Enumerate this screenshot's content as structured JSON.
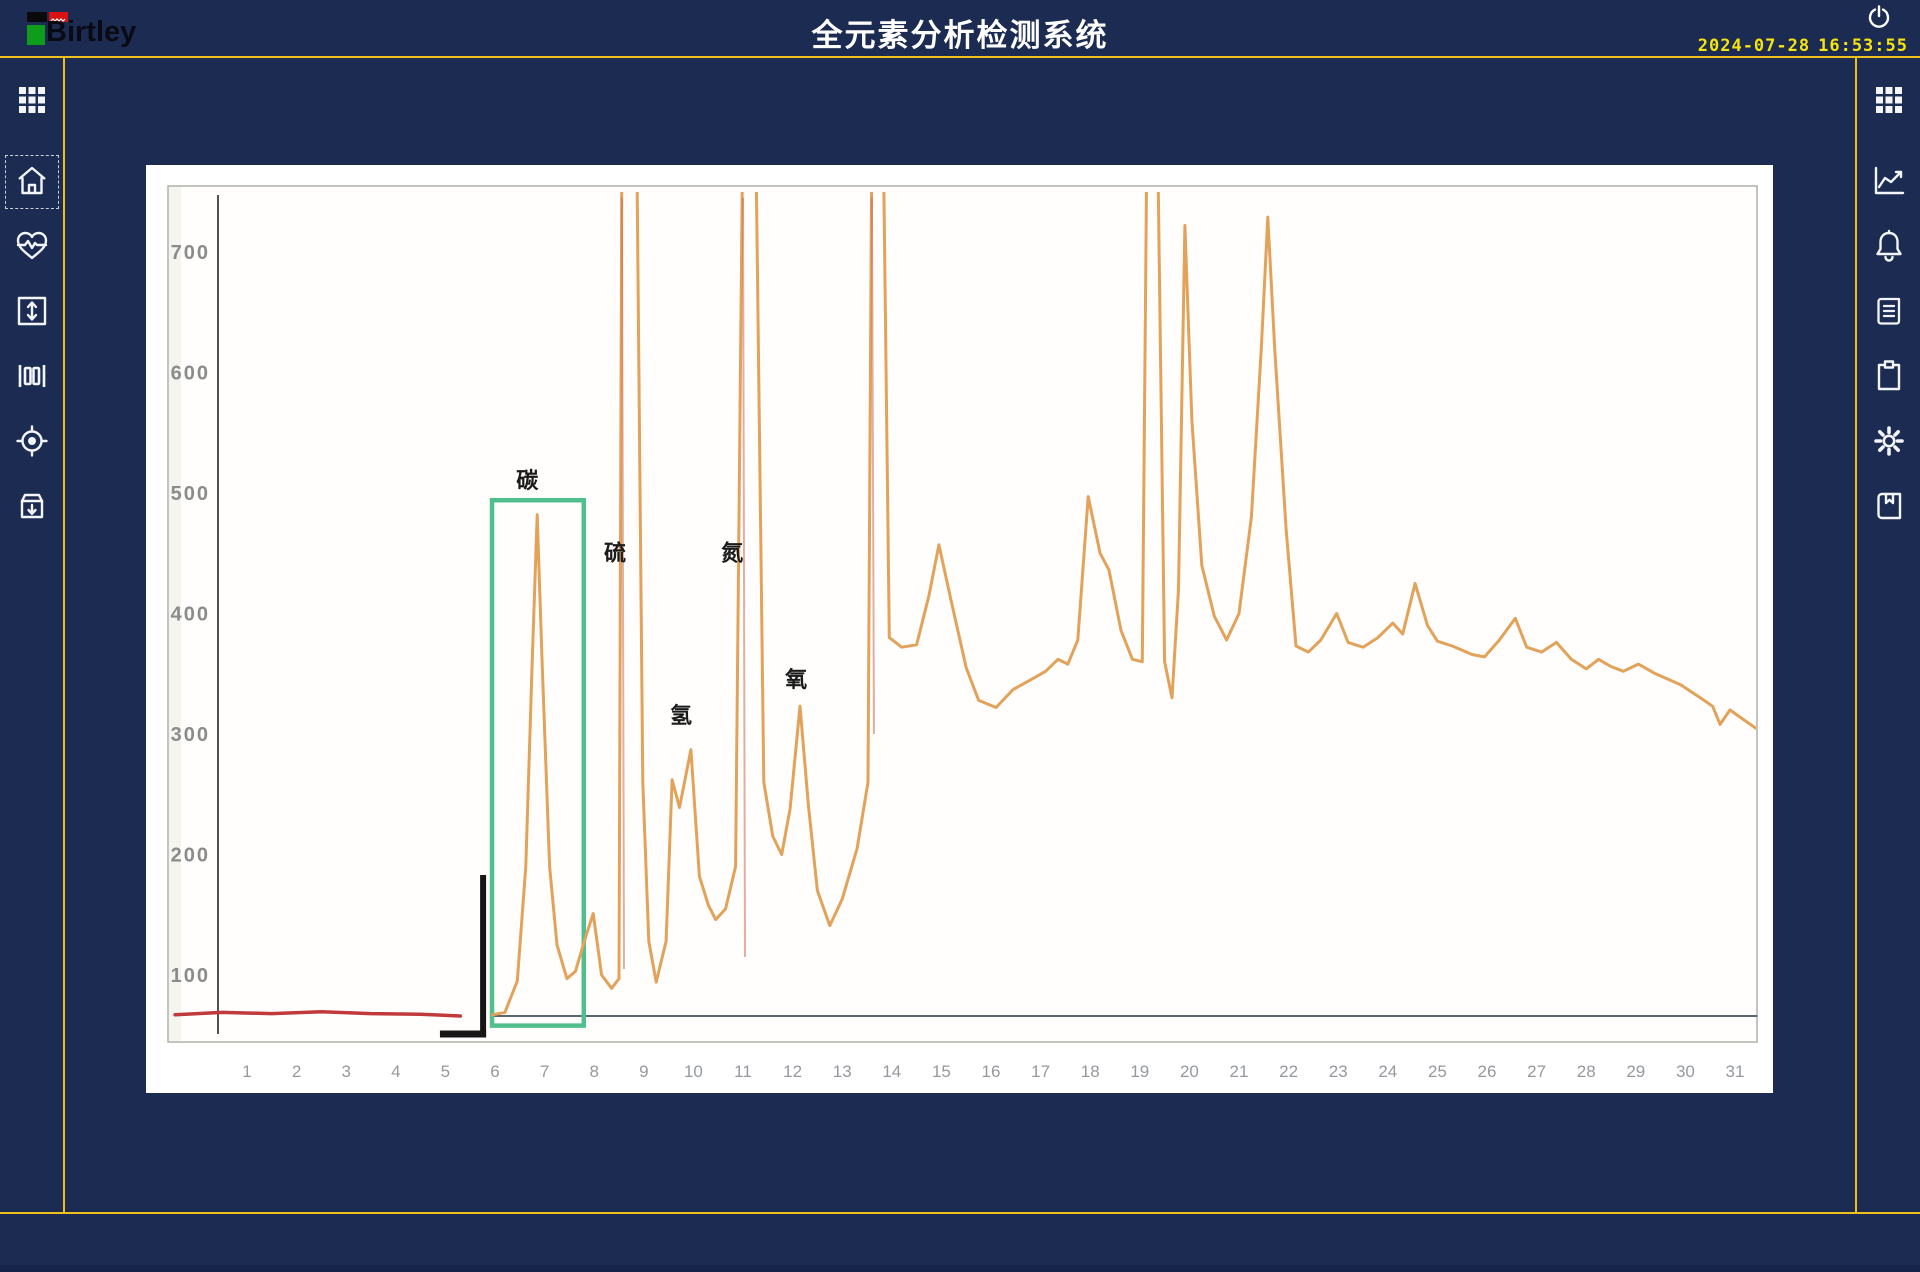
{
  "header": {
    "logo_text": "Birtley",
    "title": "全元素分析检测系统",
    "date": "2024-07-28",
    "time": "16:53:55",
    "power_icon": "power-icon"
  },
  "left_sidebar": {
    "icons": [
      "apps-grid-icon",
      "home-icon",
      "health-monitor-icon",
      "vertical-range-icon",
      "column-gauge-icon",
      "target-locate-icon",
      "archive-import-icon"
    ],
    "selected": "home-icon"
  },
  "right_sidebar": {
    "icons": [
      "apps-grid-icon",
      "trend-chart-icon",
      "notifications-bell-icon",
      "report-document-icon",
      "clipboard-icon",
      "settings-gear-icon",
      "logbook-icon"
    ]
  },
  "chart_data": {
    "type": "line",
    "title": "",
    "xlabel": "",
    "ylabel": "",
    "x_ticks": [
      1,
      2,
      3,
      4,
      5,
      6,
      7,
      8,
      9,
      10,
      11,
      12,
      13,
      14,
      15,
      16,
      17,
      18,
      19,
      20,
      21,
      22,
      23,
      24,
      25,
      26,
      27,
      28,
      29,
      30,
      31
    ],
    "y_ticks": [
      700,
      600,
      500,
      400,
      300,
      200,
      100
    ],
    "xlim": [
      -0.5,
      31.6
    ],
    "ylim": [
      0,
      760
    ],
    "grid": false,
    "legend": "none",
    "colors": {
      "trace": "#e2a25a",
      "trace_artifact": "rgba(198,110,88,0.55)",
      "baseline_red": "#c0393b",
      "baseline_gray": "#5a6570",
      "highlight_box": "#4fc08d",
      "bracket": "#161616",
      "axis": "#55504b",
      "border": "#aeb0a8",
      "tick_text": "#95989d",
      "label_text": "#1a1a1a"
    },
    "series": [
      {
        "name": "detector-signal",
        "points": [
          [
            5.95,
            67
          ],
          [
            6.2,
            69
          ],
          [
            6.45,
            95
          ],
          [
            6.62,
            190
          ],
          [
            6.75,
            360
          ],
          [
            6.85,
            482
          ],
          [
            6.95,
            360
          ],
          [
            7.1,
            190
          ],
          [
            7.25,
            125
          ],
          [
            7.45,
            97
          ],
          [
            7.62,
            103
          ],
          [
            7.8,
            128
          ],
          [
            7.98,
            151
          ],
          [
            8.15,
            100
          ],
          [
            8.35,
            89
          ],
          [
            8.5,
            97
          ],
          [
            8.56,
            820
          ],
          [
            8.85,
            820
          ],
          [
            8.98,
            260
          ],
          [
            9.1,
            128
          ],
          [
            9.25,
            94
          ],
          [
            9.45,
            128
          ],
          [
            9.57,
            262
          ],
          [
            9.72,
            239
          ],
          [
            9.95,
            287
          ],
          [
            10.12,
            182
          ],
          [
            10.3,
            158
          ],
          [
            10.45,
            146
          ],
          [
            10.65,
            155
          ],
          [
            10.85,
            190
          ],
          [
            11.0,
            820
          ],
          [
            11.25,
            820
          ],
          [
            11.42,
            260
          ],
          [
            11.6,
            215
          ],
          [
            11.78,
            200
          ],
          [
            11.95,
            238
          ],
          [
            12.15,
            323
          ],
          [
            12.32,
            240
          ],
          [
            12.5,
            170
          ],
          [
            12.75,
            141
          ],
          [
            13.0,
            163
          ],
          [
            13.3,
            205
          ],
          [
            13.52,
            260
          ],
          [
            13.6,
            820
          ],
          [
            13.82,
            820
          ],
          [
            13.95,
            380
          ],
          [
            14.2,
            372
          ],
          [
            14.5,
            374
          ],
          [
            14.75,
            415
          ],
          [
            14.95,
            457
          ],
          [
            15.2,
            410
          ],
          [
            15.5,
            355
          ],
          [
            15.75,
            328
          ],
          [
            16.1,
            322
          ],
          [
            16.45,
            337
          ],
          [
            16.8,
            345
          ],
          [
            17.1,
            352
          ],
          [
            17.35,
            362
          ],
          [
            17.55,
            358
          ],
          [
            17.75,
            378
          ],
          [
            17.96,
            497
          ],
          [
            18.2,
            450
          ],
          [
            18.38,
            436
          ],
          [
            18.62,
            386
          ],
          [
            18.85,
            362
          ],
          [
            19.05,
            360
          ],
          [
            19.15,
            820
          ],
          [
            19.35,
            820
          ],
          [
            19.5,
            360
          ],
          [
            19.65,
            330
          ],
          [
            19.78,
            420
          ],
          [
            19.91,
            722
          ],
          [
            20.05,
            560
          ],
          [
            20.25,
            440
          ],
          [
            20.5,
            398
          ],
          [
            20.75,
            378
          ],
          [
            21.0,
            400
          ],
          [
            21.25,
            480
          ],
          [
            21.45,
            620
          ],
          [
            21.58,
            729
          ],
          [
            21.72,
            620
          ],
          [
            21.95,
            470
          ],
          [
            22.15,
            373
          ],
          [
            22.4,
            368
          ],
          [
            22.65,
            378
          ],
          [
            22.97,
            400
          ],
          [
            23.2,
            376
          ],
          [
            23.5,
            372
          ],
          [
            23.8,
            380
          ],
          [
            24.1,
            392
          ],
          [
            24.3,
            383
          ],
          [
            24.55,
            425
          ],
          [
            24.8,
            390
          ],
          [
            25.0,
            377
          ],
          [
            25.3,
            373
          ],
          [
            25.7,
            366
          ],
          [
            25.95,
            364
          ],
          [
            26.25,
            378
          ],
          [
            26.57,
            396
          ],
          [
            26.8,
            372
          ],
          [
            27.1,
            368
          ],
          [
            27.4,
            376
          ],
          [
            27.7,
            362
          ],
          [
            28.0,
            354
          ],
          [
            28.25,
            362
          ],
          [
            28.5,
            356
          ],
          [
            28.75,
            352
          ],
          [
            29.05,
            358
          ],
          [
            29.4,
            350
          ],
          [
            29.9,
            341
          ],
          [
            30.3,
            330
          ],
          [
            30.55,
            323
          ],
          [
            30.7,
            308
          ],
          [
            30.9,
            320
          ],
          [
            31.1,
            314
          ],
          [
            31.45,
            304
          ]
        ]
      },
      {
        "name": "baseline-red",
        "points": [
          [
            -0.45,
            67
          ],
          [
            0.5,
            69
          ],
          [
            1.5,
            68
          ],
          [
            2.5,
            69.5
          ],
          [
            3.5,
            68
          ],
          [
            4.5,
            67.5
          ],
          [
            5.3,
            66
          ]
        ]
      },
      {
        "name": "baseline-gray",
        "points": [
          [
            5.95,
            66
          ],
          [
            31.45,
            66
          ]
        ]
      }
    ],
    "artifact_lines": [
      {
        "t": 8.56,
        "v_top": 745,
        "v_bottom": 105
      },
      {
        "t": 11.0,
        "v_top": 745,
        "v_bottom": 115
      },
      {
        "t": 13.6,
        "v_top": 745,
        "v_bottom": 300
      }
    ],
    "annotations": [
      {
        "label": "碳",
        "t": 6.65,
        "v": 504
      },
      {
        "label": "硫",
        "t": 8.42,
        "v": 444
      },
      {
        "label": "氢",
        "t": 9.75,
        "v": 309
      },
      {
        "label": "氮",
        "t": 10.78,
        "v": 444
      },
      {
        "label": "氧",
        "t": 12.07,
        "v": 339
      }
    ],
    "highlight_box": {
      "element": "碳",
      "t0": 5.94,
      "t1": 7.79,
      "v_bottom": 58,
      "v_top": 494
    },
    "bracket": {
      "t": 5.76,
      "t_foot": 4.89,
      "v_top": 183,
      "v_bottom": 48.5
    }
  }
}
